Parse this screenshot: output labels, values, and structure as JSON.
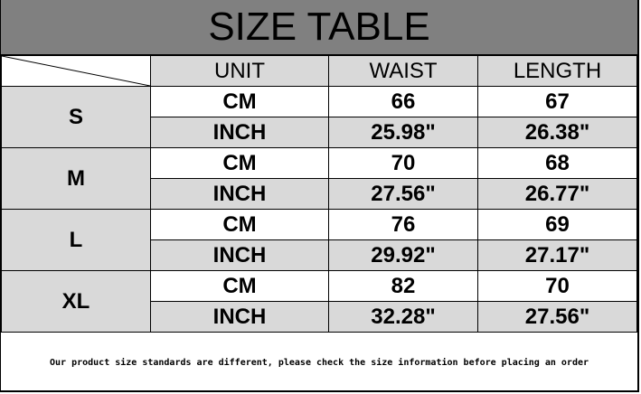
{
  "title": "SIZE TABLE",
  "headers": [
    "UNIT",
    "WAIST",
    "LENGTH"
  ],
  "rows": [
    {
      "size": "S",
      "cm": [
        "CM",
        "66",
        "67"
      ],
      "inch": [
        "INCH",
        "25.98\"",
        "26.38\""
      ]
    },
    {
      "size": "M",
      "cm": [
        "CM",
        "70",
        "68"
      ],
      "inch": [
        "INCH",
        "27.56\"",
        "26.77\""
      ]
    },
    {
      "size": "L",
      "cm": [
        "CM",
        "76",
        "69"
      ],
      "inch": [
        "INCH",
        "29.92\"",
        "27.17\""
      ]
    },
    {
      "size": "XL",
      "cm": [
        "CM",
        "82",
        "70"
      ],
      "inch": [
        "INCH",
        "32.28\"",
        "27.56\""
      ]
    }
  ],
  "footer": "Our product size standards are different, please check the size information before placing an order"
}
